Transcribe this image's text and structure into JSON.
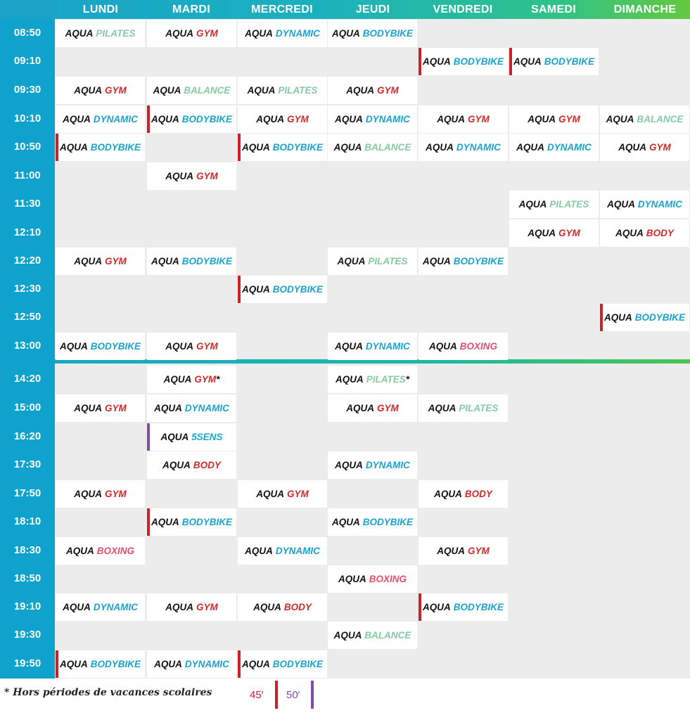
{
  "days": [
    "LUNDI",
    "MARDI",
    "MERCREDI",
    "JEUDI",
    "VENDREDI",
    "SAMEDI",
    "DIMANCHE"
  ],
  "times": [
    "08:50",
    "09:10",
    "09:30",
    "10:10",
    "10:50",
    "11:00",
    "11:30",
    "12:10",
    "12:20",
    "12:30",
    "12:50",
    "13:00",
    "14:20",
    "15:00",
    "16:20",
    "17:30",
    "17:50",
    "18:10",
    "18:30",
    "18:50",
    "19:10",
    "19:30",
    "19:50"
  ],
  "prefix": "AQUA",
  "sessions": [
    {
      "row": 0,
      "col": 0,
      "name": "PILATES"
    },
    {
      "row": 0,
      "col": 1,
      "name": "GYM"
    },
    {
      "row": 0,
      "col": 2,
      "name": "DYNAMIC"
    },
    {
      "row": 0,
      "col": 3,
      "name": "BODYBIKE"
    },
    {
      "row": 1,
      "col": 4,
      "name": "BODYBIKE",
      "dur": "45"
    },
    {
      "row": 1,
      "col": 5,
      "name": "BODYBIKE",
      "dur": "45"
    },
    {
      "row": 2,
      "col": 0,
      "name": "GYM"
    },
    {
      "row": 2,
      "col": 1,
      "name": "BALANCE"
    },
    {
      "row": 2,
      "col": 2,
      "name": "PILATES"
    },
    {
      "row": 2,
      "col": 3,
      "name": "GYM"
    },
    {
      "row": 3,
      "col": 0,
      "name": "DYNAMIC"
    },
    {
      "row": 3,
      "col": 1,
      "name": "BODYBIKE",
      "dur": "45"
    },
    {
      "row": 3,
      "col": 2,
      "name": "GYM"
    },
    {
      "row": 3,
      "col": 3,
      "name": "DYNAMIC"
    },
    {
      "row": 3,
      "col": 4,
      "name": "GYM"
    },
    {
      "row": 3,
      "col": 5,
      "name": "GYM"
    },
    {
      "row": 3,
      "col": 6,
      "name": "BALANCE"
    },
    {
      "row": 4,
      "col": 0,
      "name": "BODYBIKE",
      "dur": "45"
    },
    {
      "row": 4,
      "col": 2,
      "name": "BODYBIKE",
      "dur": "45"
    },
    {
      "row": 4,
      "col": 3,
      "name": "BALANCE"
    },
    {
      "row": 4,
      "col": 4,
      "name": "DYNAMIC"
    },
    {
      "row": 4,
      "col": 5,
      "name": "DYNAMIC"
    },
    {
      "row": 4,
      "col": 6,
      "name": "GYM"
    },
    {
      "row": 5,
      "col": 1,
      "name": "GYM"
    },
    {
      "row": 6,
      "col": 5,
      "name": "PILATES"
    },
    {
      "row": 6,
      "col": 6,
      "name": "DYNAMIC"
    },
    {
      "row": 7,
      "col": 5,
      "name": "GYM"
    },
    {
      "row": 7,
      "col": 6,
      "name": "BODY"
    },
    {
      "row": 8,
      "col": 0,
      "name": "GYM"
    },
    {
      "row": 8,
      "col": 1,
      "name": "BODYBIKE"
    },
    {
      "row": 8,
      "col": 3,
      "name": "PILATES"
    },
    {
      "row": 8,
      "col": 4,
      "name": "BODYBIKE"
    },
    {
      "row": 9,
      "col": 2,
      "name": "BODYBIKE",
      "dur": "45"
    },
    {
      "row": 10,
      "col": 6,
      "name": "BODYBIKE",
      "dur": "45"
    },
    {
      "row": 11,
      "col": 0,
      "name": "BODYBIKE"
    },
    {
      "row": 11,
      "col": 1,
      "name": "GYM"
    },
    {
      "row": 11,
      "col": 3,
      "name": "DYNAMIC"
    },
    {
      "row": 11,
      "col": 4,
      "name": "BOXING"
    },
    {
      "row": 12,
      "col": 1,
      "name": "GYM",
      "star": "*"
    },
    {
      "row": 12,
      "col": 3,
      "name": "PILATES",
      "star": "*"
    },
    {
      "row": 13,
      "col": 0,
      "name": "GYM"
    },
    {
      "row": 13,
      "col": 1,
      "name": "DYNAMIC"
    },
    {
      "row": 13,
      "col": 3,
      "name": "GYM"
    },
    {
      "row": 13,
      "col": 4,
      "name": "PILATES"
    },
    {
      "row": 14,
      "col": 1,
      "name": "5SENS",
      "dur": "50"
    },
    {
      "row": 15,
      "col": 1,
      "name": "BODY"
    },
    {
      "row": 15,
      "col": 3,
      "name": "DYNAMIC"
    },
    {
      "row": 16,
      "col": 0,
      "name": "GYM"
    },
    {
      "row": 16,
      "col": 2,
      "name": "GYM"
    },
    {
      "row": 16,
      "col": 4,
      "name": "BODY"
    },
    {
      "row": 17,
      "col": 1,
      "name": "BODYBIKE",
      "dur": "45"
    },
    {
      "row": 17,
      "col": 3,
      "name": "BODYBIKE"
    },
    {
      "row": 18,
      "col": 0,
      "name": "BOXING"
    },
    {
      "row": 18,
      "col": 2,
      "name": "DYNAMIC"
    },
    {
      "row": 18,
      "col": 4,
      "name": "GYM"
    },
    {
      "row": 19,
      "col": 3,
      "name": "BOXING"
    },
    {
      "row": 20,
      "col": 0,
      "name": "DYNAMIC"
    },
    {
      "row": 20,
      "col": 1,
      "name": "GYM"
    },
    {
      "row": 20,
      "col": 2,
      "name": "BODY"
    },
    {
      "row": 20,
      "col": 4,
      "name": "BODYBIKE",
      "dur": "45"
    },
    {
      "row": 21,
      "col": 3,
      "name": "BALANCE"
    },
    {
      "row": 22,
      "col": 0,
      "name": "BODYBIKE",
      "dur": "45"
    },
    {
      "row": 22,
      "col": 1,
      "name": "DYNAMIC"
    },
    {
      "row": 22,
      "col": 2,
      "name": "BODYBIKE",
      "dur": "45"
    }
  ],
  "footnote": "* Hors périodes de vacances scolaires",
  "legend": {
    "m45": "45′",
    "m50": "50′"
  },
  "colors": {
    "time_column": "#0ea2cc",
    "dur45": "#c8222a",
    "dur50": "#7a4fa5"
  }
}
